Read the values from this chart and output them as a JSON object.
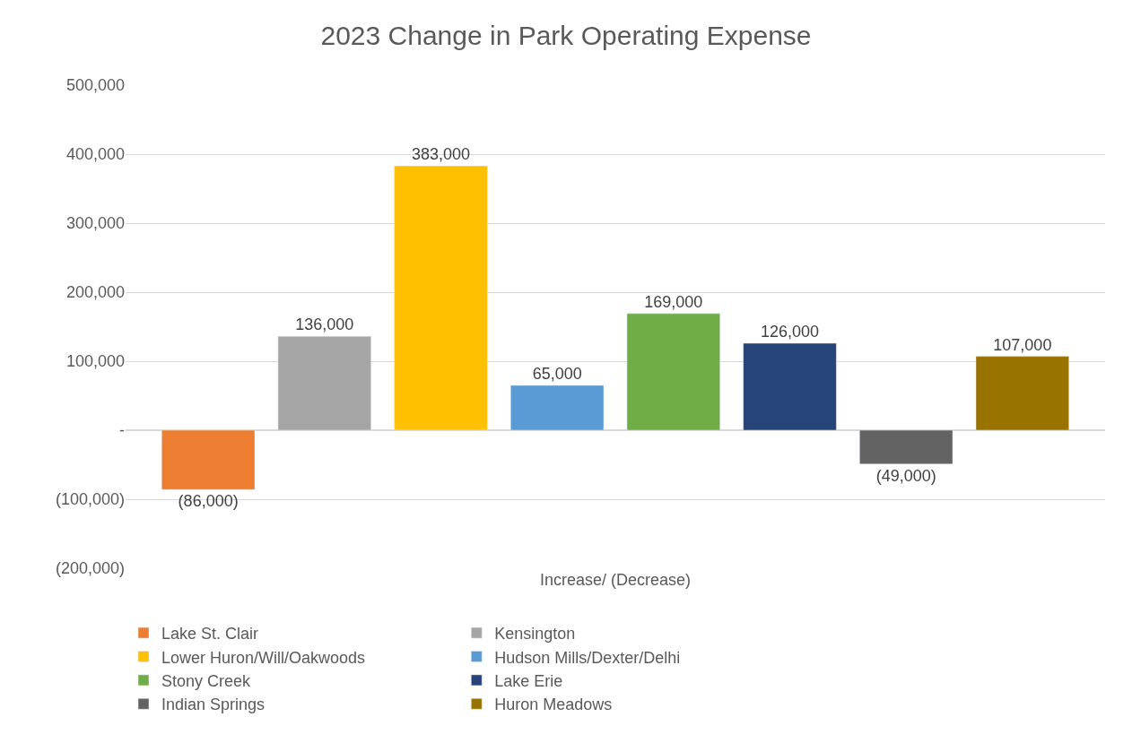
{
  "chart_data": {
    "type": "bar",
    "title": "2023 Change in Park Operating Expense",
    "categories": [
      "Increase/ (Decrease)"
    ],
    "series": [
      {
        "name": "Lake St. Clair",
        "color": "#ed7d31",
        "values": [
          -86000
        ],
        "value_labels": [
          "(86,000)"
        ]
      },
      {
        "name": "Kensington",
        "color": "#a5a5a5",
        "values": [
          136000
        ],
        "value_labels": [
          "136,000"
        ]
      },
      {
        "name": "Lower Huron/Will/Oakwoods",
        "color": "#ffc000",
        "values": [
          383000
        ],
        "value_labels": [
          "383,000"
        ]
      },
      {
        "name": "Hudson Mills/Dexter/Delhi",
        "color": "#5b9bd5",
        "values": [
          65000
        ],
        "value_labels": [
          "65,000"
        ]
      },
      {
        "name": "Stony Creek",
        "color": "#70ad47",
        "values": [
          169000
        ],
        "value_labels": [
          "169,000"
        ]
      },
      {
        "name": "Lake Erie",
        "color": "#264478",
        "values": [
          126000
        ],
        "value_labels": [
          "126,000"
        ]
      },
      {
        "name": "Indian Springs",
        "color": "#636363",
        "values": [
          -49000
        ],
        "value_labels": [
          "(49,000)"
        ]
      },
      {
        "name": "Huron Meadows",
        "color": "#997300",
        "values": [
          107000
        ],
        "value_labels": [
          "107,000"
        ]
      }
    ],
    "ylim": [
      -200000,
      500000
    ],
    "yticks": [
      {
        "value": -200000,
        "label": "(200,000)"
      },
      {
        "value": -100000,
        "label": "(100,000)"
      },
      {
        "value": 0,
        "label": "-"
      },
      {
        "value": 100000,
        "label": "100,000"
      },
      {
        "value": 200000,
        "label": "200,000"
      },
      {
        "value": 300000,
        "label": "300,000"
      },
      {
        "value": 400000,
        "label": "400,000"
      },
      {
        "value": 500000,
        "label": "500,000"
      }
    ],
    "grid": "y",
    "legend": "bottom"
  }
}
